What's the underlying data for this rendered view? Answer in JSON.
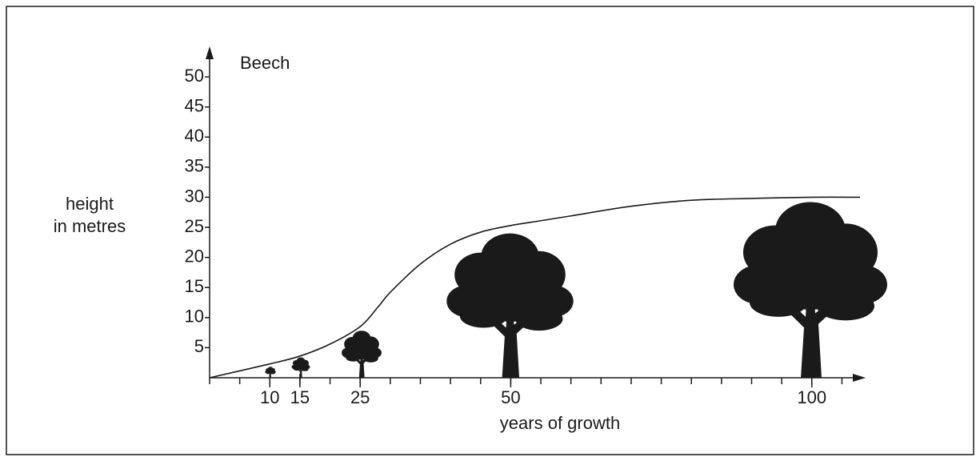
{
  "chart_data": {
    "type": "line",
    "title": "Beech",
    "xlabel": "years of growth",
    "ylabel": [
      "height",
      "in metres"
    ],
    "x": [
      0,
      10,
      15,
      20,
      25,
      28,
      30,
      35,
      40,
      45,
      50,
      55,
      60,
      70,
      80,
      90,
      100,
      108
    ],
    "values": [
      0,
      2.3,
      3.6,
      5.6,
      8.5,
      11.8,
      14.2,
      18.9,
      22.2,
      24.2,
      25.3,
      26.1,
      26.9,
      28.5,
      29.5,
      29.8,
      30,
      30
    ],
    "color": "#1a1a1a",
    "xlim": [
      0,
      108
    ],
    "ylim": [
      0,
      54
    ],
    "xticks": [
      10,
      15,
      25,
      50,
      100
    ],
    "xticks_minor": [
      0,
      5,
      10,
      15,
      20,
      25,
      30,
      35,
      40,
      45,
      50,
      55,
      60,
      65,
      70,
      75,
      80,
      85,
      90,
      95,
      100,
      105
    ],
    "yticks": [
      5,
      10,
      15,
      20,
      25,
      30,
      35,
      40,
      45,
      50
    ]
  }
}
